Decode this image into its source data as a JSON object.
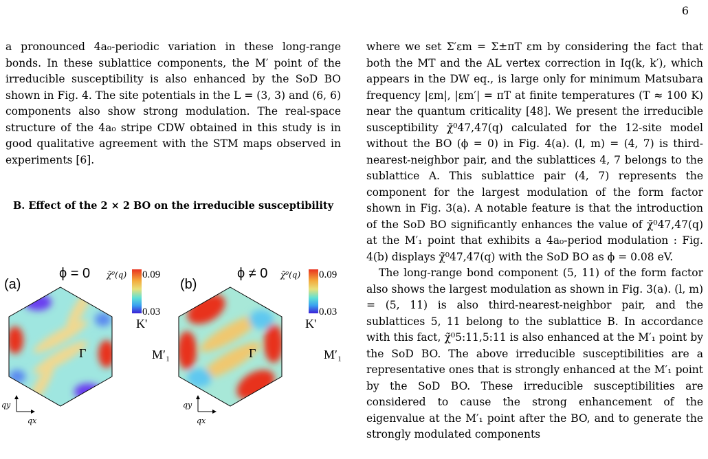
{
  "page_number": "6",
  "left_column": {
    "paragraph": "a pronounced 4a₀-periodic variation in these long-range bonds. In these sublattice components, the M′ point of the irreducible susceptibility is also enhanced by the SoD BO shown in Fig. 4. The site potentials in the L = (3, 3) and (6, 6) components also show strong modulation. The real-space structure of the 4a₀ stripe CDW obtained in this study is in good qualitative agreement with the STM maps observed in experiments [6].",
    "section_title": "B. Effect of the 2 × 2 BO on the irreducible susceptibility"
  },
  "figure": {
    "panel_a": {
      "label": "(a)",
      "phi": "ϕ = 0",
      "colorbar_label": "χ̃⁰(q)",
      "colorbar_max": "0.09",
      "colorbar_min": "0.03",
      "k_point": "K'",
      "m_point": "M′₁",
      "gamma": "Γ",
      "qx": "qx",
      "qy": "qy"
    },
    "panel_b": {
      "label": "(b)",
      "phi": "ϕ ≠ 0",
      "colorbar_label": "χ̃⁰(q)",
      "colorbar_max": "0.09",
      "colorbar_min": "0.03",
      "k_point": "K'",
      "m_point": "M′₁",
      "gamma": "Γ",
      "qx": "qx",
      "qy": "qy"
    },
    "colors": {
      "low": "#3a1fd6",
      "mid": "#e8e07a",
      "high": "#e8331f",
      "background_field": "#9fe6e0"
    }
  },
  "right_column": {
    "paragraph1": "where we set Σ′εm = Σ±πT εm by considering the fact that both the MT and the AL vertex correction in Iq(k, k′), which appears in the DW eq., is large only for minimum Matsubara frequency |εm|, |εm′| = πT at finite temperatures (T ≈ 100 K) near the quantum criticality [48]. We present the irreducible susceptibility χ̃⁰47,47(q) calculated for the 12-site model without the BO (ϕ = 0) in Fig. 4(a). (l, m) = (4, 7) is third-nearest-neighbor pair, and the sublattices 4, 7 belongs to the sublattice A. This sublattice pair (4, 7) represents the component for the largest modulation of the form factor shown in Fig. 3(a). A notable feature is that the introduction of the SoD BO significantly enhances the value of χ̃⁰47,47(q) at the M′₁ point that exhibits a 4a₀-period modulation : Fig. 4(b) displays χ̃⁰47,47(q) with the SoD BO as ϕ = 0.08 eV.",
    "paragraph2": "The long-range bond component (5, 11) of the form factor also shows the largest modulation as shown in Fig. 3(a). (l, m) = (5, 11) is also third-nearest-neighbor pair, and the sublattices 5, 11 belong to the sublattice B. In accordance with this fact, χ̃⁰5:11,5:11 is also enhanced at the M′₁ point by the SoD BO. The above irreducible susceptibilities are a representative ones that is strongly enhanced at the M′₁ point by the SoD BO. These irreducible susceptibilities are considered to cause the strong enhancement of the eigenvalue at the M′₁ point after the BO, and to generate the strongly modulated components"
  }
}
